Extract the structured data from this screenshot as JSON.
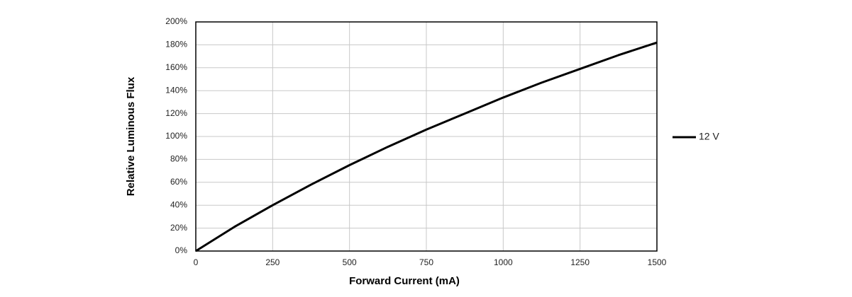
{
  "chart_data": {
    "type": "line",
    "x_label": "Forward Current (mA)",
    "y_label": "Relative Luminous Flux",
    "x": [
      0,
      125,
      250,
      375,
      500,
      625,
      750,
      875,
      1000,
      1125,
      1250,
      1375,
      1500
    ],
    "series": [
      {
        "name": "12 V",
        "color": "#000000",
        "values": [
          0,
          21,
          40,
          58,
          75,
          91,
          106,
          120,
          134,
          147,
          159,
          171,
          182
        ]
      }
    ],
    "xlim": [
      0,
      1500
    ],
    "xticks": [
      0,
      250,
      500,
      750,
      1000,
      1250,
      1500
    ],
    "ylim": [
      0,
      200
    ],
    "yticks": [
      {
        "value": 0,
        "label": "0%"
      },
      {
        "value": 20,
        "label": "20%"
      },
      {
        "value": 40,
        "label": "40%"
      },
      {
        "value": 60,
        "label": "60%"
      },
      {
        "value": 80,
        "label": "80%"
      },
      {
        "value": 100,
        "label": "100%"
      },
      {
        "value": 120,
        "label": "120%"
      },
      {
        "value": 140,
        "label": "140%"
      },
      {
        "value": 160,
        "label": "160%"
      },
      {
        "value": 180,
        "label": "180%"
      },
      {
        "value": 200,
        "label": "200%"
      }
    ],
    "grid": true,
    "legend": "right"
  }
}
